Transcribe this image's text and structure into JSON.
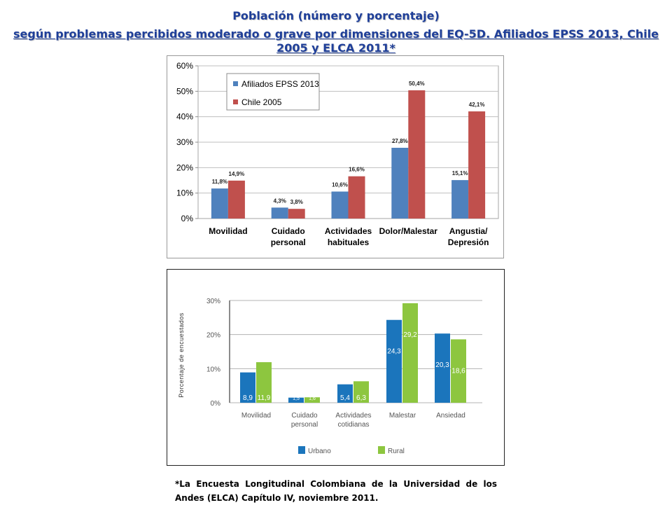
{
  "title_line1": "Población (número y porcentaje)",
  "title_line2": "según problemas percibidos moderado o grave por dimensiones del EQ-5D. Afiliados EPSS 2013, Chile 2005 y ELCA 2011*",
  "footnote": "*La Encuesta Longitudinal Colombiana de la Universidad de los Andes (ELCA) Capítulo IV, noviembre 2011.",
  "colors": {
    "epss": "#4f81bd",
    "chile": "#c0504d",
    "urbano": "#1b75bc",
    "rural": "#8dc63f",
    "title": "#1f3f99"
  },
  "chart_data": [
    {
      "type": "bar",
      "categories": [
        "Movilidad",
        "Cuidado personal",
        "Actividades habituales",
        "Dolor/Malestar",
        "Angustia/ Depresión"
      ],
      "series": [
        {
          "name": "Afiliados EPSS 2013",
          "values": [
            11.8,
            4.3,
            10.6,
            27.8,
            15.1
          ],
          "labels": [
            "11,8%",
            "4,3%",
            "10,6%",
            "27,8%",
            "15,1%"
          ]
        },
        {
          "name": "Chile 2005",
          "values": [
            14.9,
            3.8,
            16.6,
            50.4,
            42.1
          ],
          "labels": [
            "14,9%",
            "3,8%",
            "16,6%",
            "50,4%",
            "42,1%"
          ]
        }
      ],
      "yticks": [
        "0%",
        "10%",
        "20%",
        "30%",
        "40%",
        "50%",
        "60%"
      ],
      "ylim": [
        0,
        60
      ],
      "grid": true,
      "legend": "top-left"
    },
    {
      "type": "bar",
      "categories": [
        "Movilidad",
        "Cuidado personal",
        "Actividades cotidianas",
        "Malestar",
        "Ansiedad"
      ],
      "series": [
        {
          "name": "Urbano",
          "values": [
            8.9,
            1.5,
            5.4,
            24.3,
            20.3
          ],
          "labels": [
            "8,9",
            "1,5",
            "5,4",
            "24,3",
            "20,3"
          ]
        },
        {
          "name": "Rural",
          "values": [
            11.9,
            1.6,
            6.3,
            29.2,
            18.6
          ],
          "labels": [
            "11,9",
            "1,6",
            "6,3",
            "29,2",
            "18,6"
          ]
        }
      ],
      "yticks": [
        "0%",
        "10%",
        "20%",
        "30%"
      ],
      "ylim": [
        0,
        30
      ],
      "ylabel": "Porcentaje de encuestados",
      "grid": true,
      "legend": "bottom"
    }
  ]
}
